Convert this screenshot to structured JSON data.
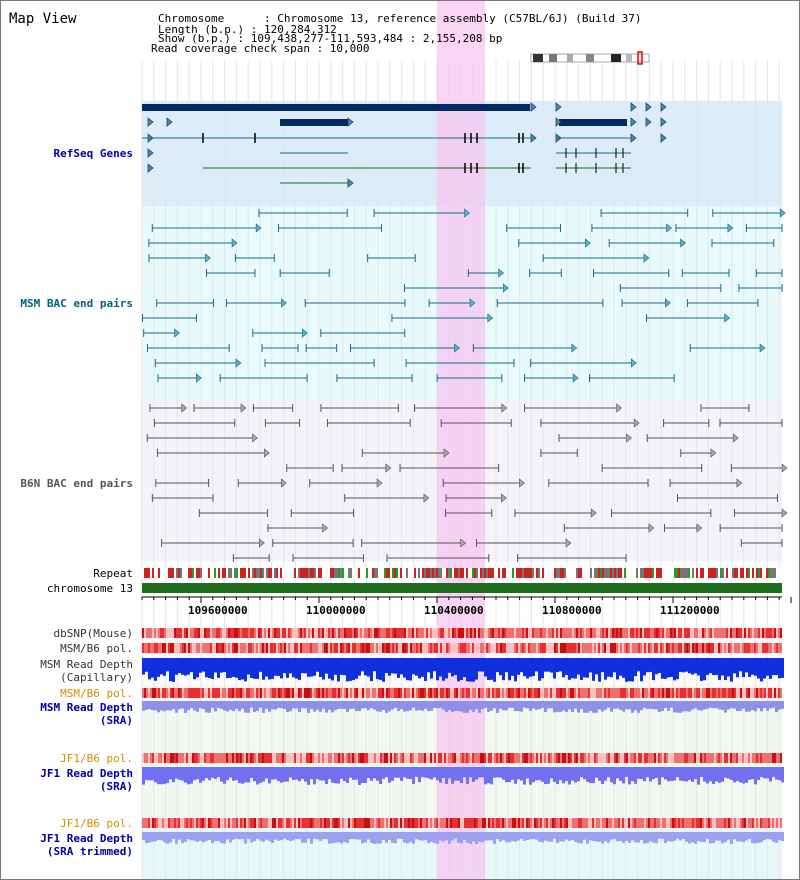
{
  "title": "Map View",
  "header": {
    "chromosome": "Chromosome      : Chromosome 13, reference assembly (C57BL/6J) (Build 37)",
    "length": "Length (b.p.) : 120,284,312",
    "show": "Show (b.p.) : 109,438,277-111,593,484 : 2,155,208 bp",
    "span": "Read coverage check span : 10,000"
  },
  "tracks": {
    "refseq": "RefSeq Genes",
    "msm_bac": "MSM BAC end pairs",
    "b6n_bac": "B6N BAC end pairs",
    "repeat": "Repeat",
    "chromosome": "chromosome 13",
    "dbsnp": "dbSNP(Mouse)",
    "msm_b6_pol_1": "MSM/B6 pol.",
    "msm_depth_cap_1": "MSM Read Depth",
    "msm_depth_cap_2": "(Capillary)",
    "msm_b6_pol_2": "MSM/B6 pol.",
    "msm_depth_sra_1": "MSM Read Depth",
    "msm_depth_sra_2": "(SRA)",
    "jf1_b6_pol_1": "JF1/B6 pol.",
    "jf1_depth_sra_1": "JF1 Read Depth",
    "jf1_depth_sra_2": "(SRA)",
    "jf1_b6_pol_2": "JF1/B6 pol.",
    "jf1_depth_trim_1": "JF1 Read Depth",
    "jf1_depth_trim_2": "(SRA trimmed)"
  },
  "ruler": {
    "ticks": [
      "109600000",
      "110000000",
      "110400000",
      "110800000",
      "111200000"
    ]
  },
  "colors": {
    "refseq_label": "#0000aa",
    "msm_label": "#006080",
    "b6n_label": "#555555",
    "orange_label": "#dd8800",
    "blue_label": "#0000aa",
    "highlight": "#f7c6f0",
    "gene_dark": "#002a60"
  }
}
